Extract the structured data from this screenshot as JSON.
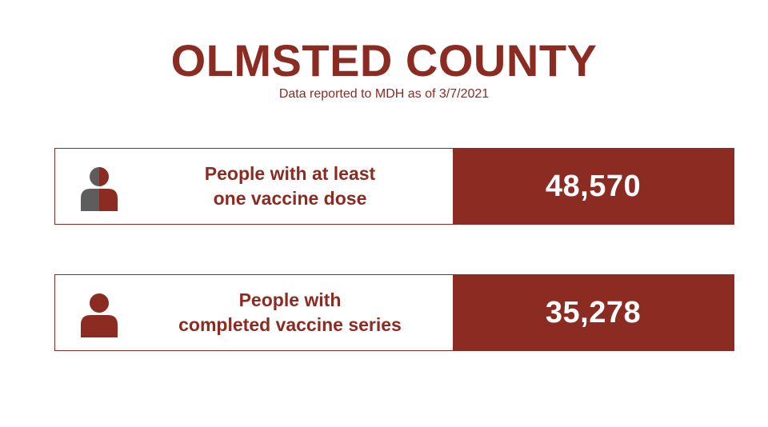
{
  "header": {
    "title": "OLMSTED COUNTY",
    "subtitle": "Data reported to MDH as of 3/7/2021"
  },
  "cards": [
    {
      "icon": "half-filled-person-icon",
      "label_line1": "People with at least",
      "label_line2": "one vaccine dose",
      "value": "48,570"
    },
    {
      "icon": "person-icon",
      "label_line1": "People with",
      "label_line2": "completed vaccine series",
      "value": "35,278"
    }
  ],
  "colors": {
    "accent": "#8b2b22",
    "icon_gray": "#5d5d5d",
    "background": "#ffffff"
  }
}
